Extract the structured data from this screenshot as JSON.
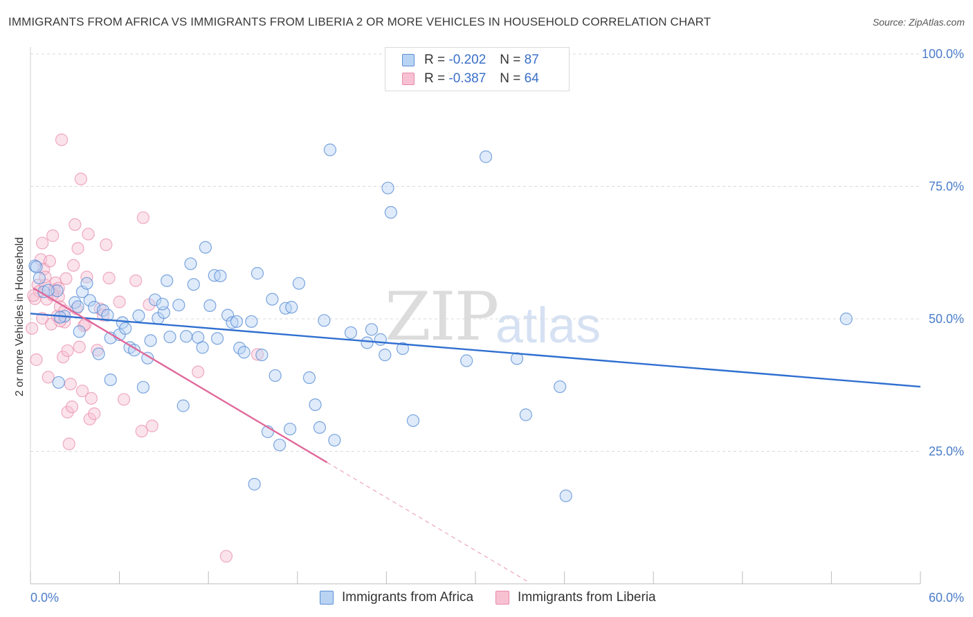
{
  "header": {
    "title": "IMMIGRANTS FROM AFRICA VS IMMIGRANTS FROM LIBERIA 2 OR MORE VEHICLES IN HOUSEHOLD CORRELATION CHART",
    "source": "Source: ZipAtlas.com"
  },
  "watermark": {
    "zip": "ZIP",
    "atlas": "atlas"
  },
  "legend": {
    "rows": [
      {
        "r_label": "R =",
        "r_value": "-0.202",
        "n_label": "N =",
        "n_value": "87"
      },
      {
        "r_label": "R =",
        "r_value": "-0.387",
        "n_label": "N =",
        "n_value": "64"
      }
    ]
  },
  "bottom_legend": [
    "Immigrants from Africa",
    "Immigrants from Liberia"
  ],
  "colors": {
    "africa_fill": "#b9d3f3",
    "africa_stroke": "#5b8fd6",
    "africa_line": "#2f6fd0",
    "liberia_fill": "#f7c1d2",
    "liberia_stroke": "#e889a9",
    "liberia_line": "#e0689a",
    "grid": "#d8d8d8",
    "tick_label": "#4a7cc9"
  },
  "chart_data": {
    "type": "scatter",
    "title": "IMMIGRANTS FROM AFRICA VS IMMIGRANTS FROM LIBERIA 2 OR MORE VEHICLES IN HOUSEHOLD CORRELATION CHART",
    "xlabel": "",
    "ylabel": "2 or more Vehicles in Household",
    "xlim": [
      0,
      60
    ],
    "ylim": [
      0,
      100
    ],
    "x_tick_labels": [
      "0.0%",
      "60.0%"
    ],
    "y_ticks": [
      25,
      50,
      75,
      100
    ],
    "y_tick_labels": [
      "25.0%",
      "50.0%",
      "75.0%",
      "100.0%"
    ],
    "grid": true,
    "legend_position": "top-center",
    "series": [
      {
        "name": "Immigrants from Africa",
        "R": -0.202,
        "N": 87,
        "trend": {
          "x": [
            0,
            60
          ],
          "y": [
            51.0,
            37.2
          ],
          "dashed_x": null
        },
        "points": [
          [
            0.3,
            60.0
          ],
          [
            0.6,
            57.7
          ],
          [
            0.9,
            55.1
          ],
          [
            1.8,
            55.3
          ],
          [
            1.9,
            38.0
          ],
          [
            2.3,
            50.5
          ],
          [
            3.0,
            53.1
          ],
          [
            3.2,
            52.3
          ],
          [
            3.3,
            47.6
          ],
          [
            3.5,
            55.1
          ],
          [
            3.8,
            56.7
          ],
          [
            4.0,
            53.5
          ],
          [
            4.3,
            52.2
          ],
          [
            4.6,
            43.4
          ],
          [
            4.9,
            51.6
          ],
          [
            5.2,
            50.7
          ],
          [
            5.4,
            38.5
          ],
          [
            5.4,
            46.4
          ],
          [
            6.0,
            47.0
          ],
          [
            6.2,
            49.3
          ],
          [
            6.4,
            48.2
          ],
          [
            6.7,
            44.6
          ],
          [
            7.0,
            44.1
          ],
          [
            7.3,
            50.6
          ],
          [
            7.6,
            37.1
          ],
          [
            7.9,
            42.6
          ],
          [
            8.1,
            45.9
          ],
          [
            8.4,
            53.6
          ],
          [
            8.6,
            50.1
          ],
          [
            9.0,
            51.2
          ],
          [
            9.2,
            57.2
          ],
          [
            9.4,
            46.6
          ],
          [
            10.0,
            52.6
          ],
          [
            10.3,
            33.6
          ],
          [
            10.5,
            46.7
          ],
          [
            10.8,
            60.4
          ],
          [
            11.0,
            56.5
          ],
          [
            11.3,
            46.5
          ],
          [
            11.6,
            44.6
          ],
          [
            11.8,
            63.5
          ],
          [
            12.1,
            52.5
          ],
          [
            12.4,
            58.2
          ],
          [
            12.6,
            46.3
          ],
          [
            12.8,
            58.1
          ],
          [
            13.3,
            50.7
          ],
          [
            13.6,
            49.3
          ],
          [
            13.9,
            49.5
          ],
          [
            14.1,
            44.5
          ],
          [
            14.4,
            43.7
          ],
          [
            14.9,
            49.5
          ],
          [
            15.3,
            58.6
          ],
          [
            15.6,
            43.2
          ],
          [
            16.0,
            28.7
          ],
          [
            16.3,
            53.7
          ],
          [
            16.5,
            39.3
          ],
          [
            16.8,
            26.2
          ],
          [
            17.2,
            52.0
          ],
          [
            17.5,
            29.2
          ],
          [
            17.6,
            52.2
          ],
          [
            18.1,
            56.7
          ],
          [
            18.8,
            38.9
          ],
          [
            19.2,
            33.8
          ],
          [
            19.5,
            29.5
          ],
          [
            19.8,
            49.7
          ],
          [
            20.2,
            81.9
          ],
          [
            20.5,
            27.1
          ],
          [
            21.6,
            47.4
          ],
          [
            22.7,
            45.5
          ],
          [
            23.0,
            48.0
          ],
          [
            23.6,
            46.1
          ],
          [
            23.9,
            43.2
          ],
          [
            24.1,
            74.7
          ],
          [
            24.3,
            70.1
          ],
          [
            25.1,
            44.4
          ],
          [
            25.8,
            30.8
          ],
          [
            29.4,
            42.1
          ],
          [
            30.7,
            80.6
          ],
          [
            32.8,
            42.5
          ],
          [
            33.4,
            31.9
          ],
          [
            35.7,
            37.2
          ],
          [
            36.1,
            16.6
          ],
          [
            0.4,
            59.8
          ],
          [
            2.0,
            50.3
          ],
          [
            8.9,
            52.8
          ],
          [
            15.1,
            18.8
          ],
          [
            55.0,
            50.0
          ],
          [
            1.2,
            55.4
          ]
        ]
      },
      {
        "name": "Immigrants from Liberia",
        "R": -0.387,
        "N": 64,
        "trend": {
          "x": [
            0.2,
            20.0
          ],
          "y": [
            55.8,
            22.9
          ],
          "dashed_x": [
            20.0,
            33.6
          ]
        },
        "points": [
          [
            0.1,
            48.2
          ],
          [
            0.3,
            53.8
          ],
          [
            0.4,
            42.3
          ],
          [
            0.5,
            56.4
          ],
          [
            0.6,
            55.2
          ],
          [
            0.7,
            61.2
          ],
          [
            0.8,
            64.3
          ],
          [
            0.9,
            59.4
          ],
          [
            1.0,
            56.4
          ],
          [
            1.1,
            53.7
          ],
          [
            1.2,
            39.0
          ],
          [
            1.3,
            60.9
          ],
          [
            1.4,
            49.0
          ],
          [
            1.5,
            65.7
          ],
          [
            1.6,
            55.5
          ],
          [
            1.7,
            56.8
          ],
          [
            1.8,
            50.5
          ],
          [
            1.9,
            54.2
          ],
          [
            2.0,
            52.3
          ],
          [
            2.1,
            83.8
          ],
          [
            2.2,
            42.8
          ],
          [
            2.3,
            49.4
          ],
          [
            2.4,
            57.6
          ],
          [
            2.5,
            32.4
          ],
          [
            2.6,
            26.4
          ],
          [
            2.7,
            37.7
          ],
          [
            2.8,
            33.4
          ],
          [
            2.9,
            60.1
          ],
          [
            3.0,
            67.8
          ],
          [
            3.1,
            51.9
          ],
          [
            3.2,
            63.3
          ],
          [
            3.3,
            44.7
          ],
          [
            3.4,
            76.4
          ],
          [
            3.5,
            36.4
          ],
          [
            3.6,
            48.7
          ],
          [
            3.8,
            57.9
          ],
          [
            3.9,
            66.0
          ],
          [
            4.0,
            31.1
          ],
          [
            4.1,
            35.0
          ],
          [
            4.3,
            32.1
          ],
          [
            4.5,
            44.1
          ],
          [
            4.7,
            51.9
          ],
          [
            4.9,
            50.7
          ],
          [
            5.1,
            64.0
          ],
          [
            5.3,
            57.7
          ],
          [
            6.0,
            53.2
          ],
          [
            6.3,
            34.8
          ],
          [
            7.1,
            57.2
          ],
          [
            7.5,
            28.8
          ],
          [
            7.6,
            69.1
          ],
          [
            8.0,
            52.7
          ],
          [
            8.2,
            29.8
          ],
          [
            11.3,
            40.0
          ],
          [
            13.2,
            5.2
          ],
          [
            15.3,
            43.3
          ],
          [
            0.2,
            54.4
          ],
          [
            1.9,
            55.8
          ],
          [
            2.0,
            49.6
          ],
          [
            3.7,
            49.0
          ],
          [
            2.3,
            51.5
          ],
          [
            1.0,
            57.9
          ],
          [
            1.5,
            54.5
          ],
          [
            0.8,
            50.1
          ],
          [
            2.5,
            44.0
          ]
        ]
      }
    ]
  }
}
